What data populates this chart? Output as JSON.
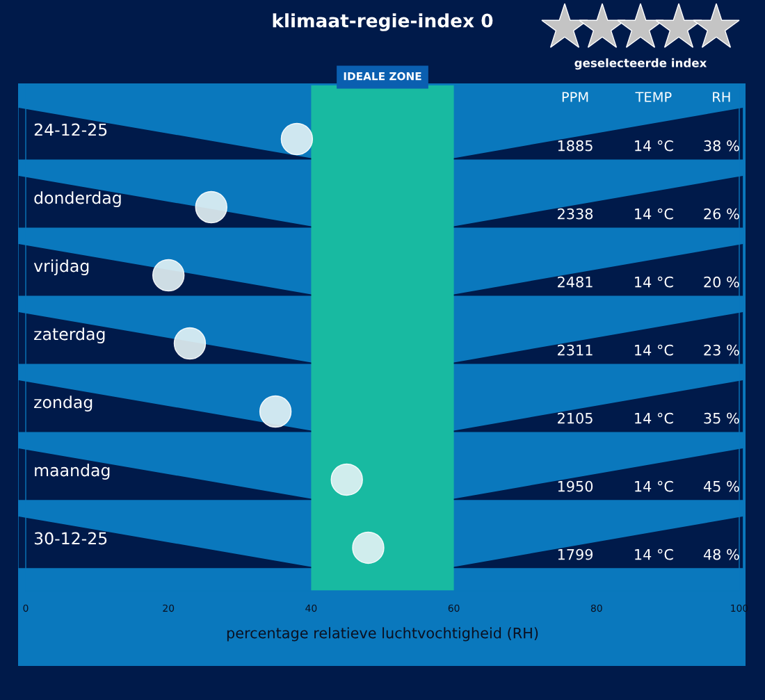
{
  "chart_data": {
    "type": "scatter",
    "orientation": "horizontal",
    "title": "klimaat-regie-index 0",
    "subtitle": "geselecteerde index",
    "xlabel": "percentage relatieve luchtvochtigheid (RH)",
    "categories": [
      "24-12-25",
      "donderdag",
      "vrijdag",
      "zaterdag",
      "zondag",
      "maandag",
      "30-12-25"
    ],
    "values": [
      38,
      26,
      20,
      23,
      35,
      45,
      48
    ],
    "color": "#e4f3f5",
    "marker": "circle",
    "grid": false,
    "xlim": [
      0,
      100
    ],
    "xticks": [
      0,
      20,
      40,
      60,
      80,
      100
    ],
    "bands": [
      {
        "axis": "x",
        "from": 40,
        "to": 60,
        "label": "IDEALE ZONE",
        "color": "#24f08a"
      }
    ],
    "annotations": [
      "PPM",
      "TEMP",
      "RH",
      "1885",
      "14 °C",
      "38 %",
      "2338",
      "14 °C",
      "26 %",
      "2481",
      "14 °C",
      "20 %",
      "2311",
      "14 °C",
      "23 %",
      "2105",
      "14 °C",
      "35 %",
      "1950",
      "14 °C",
      "45 %",
      "1799",
      "14 °C",
      "48 %"
    ]
  }
}
